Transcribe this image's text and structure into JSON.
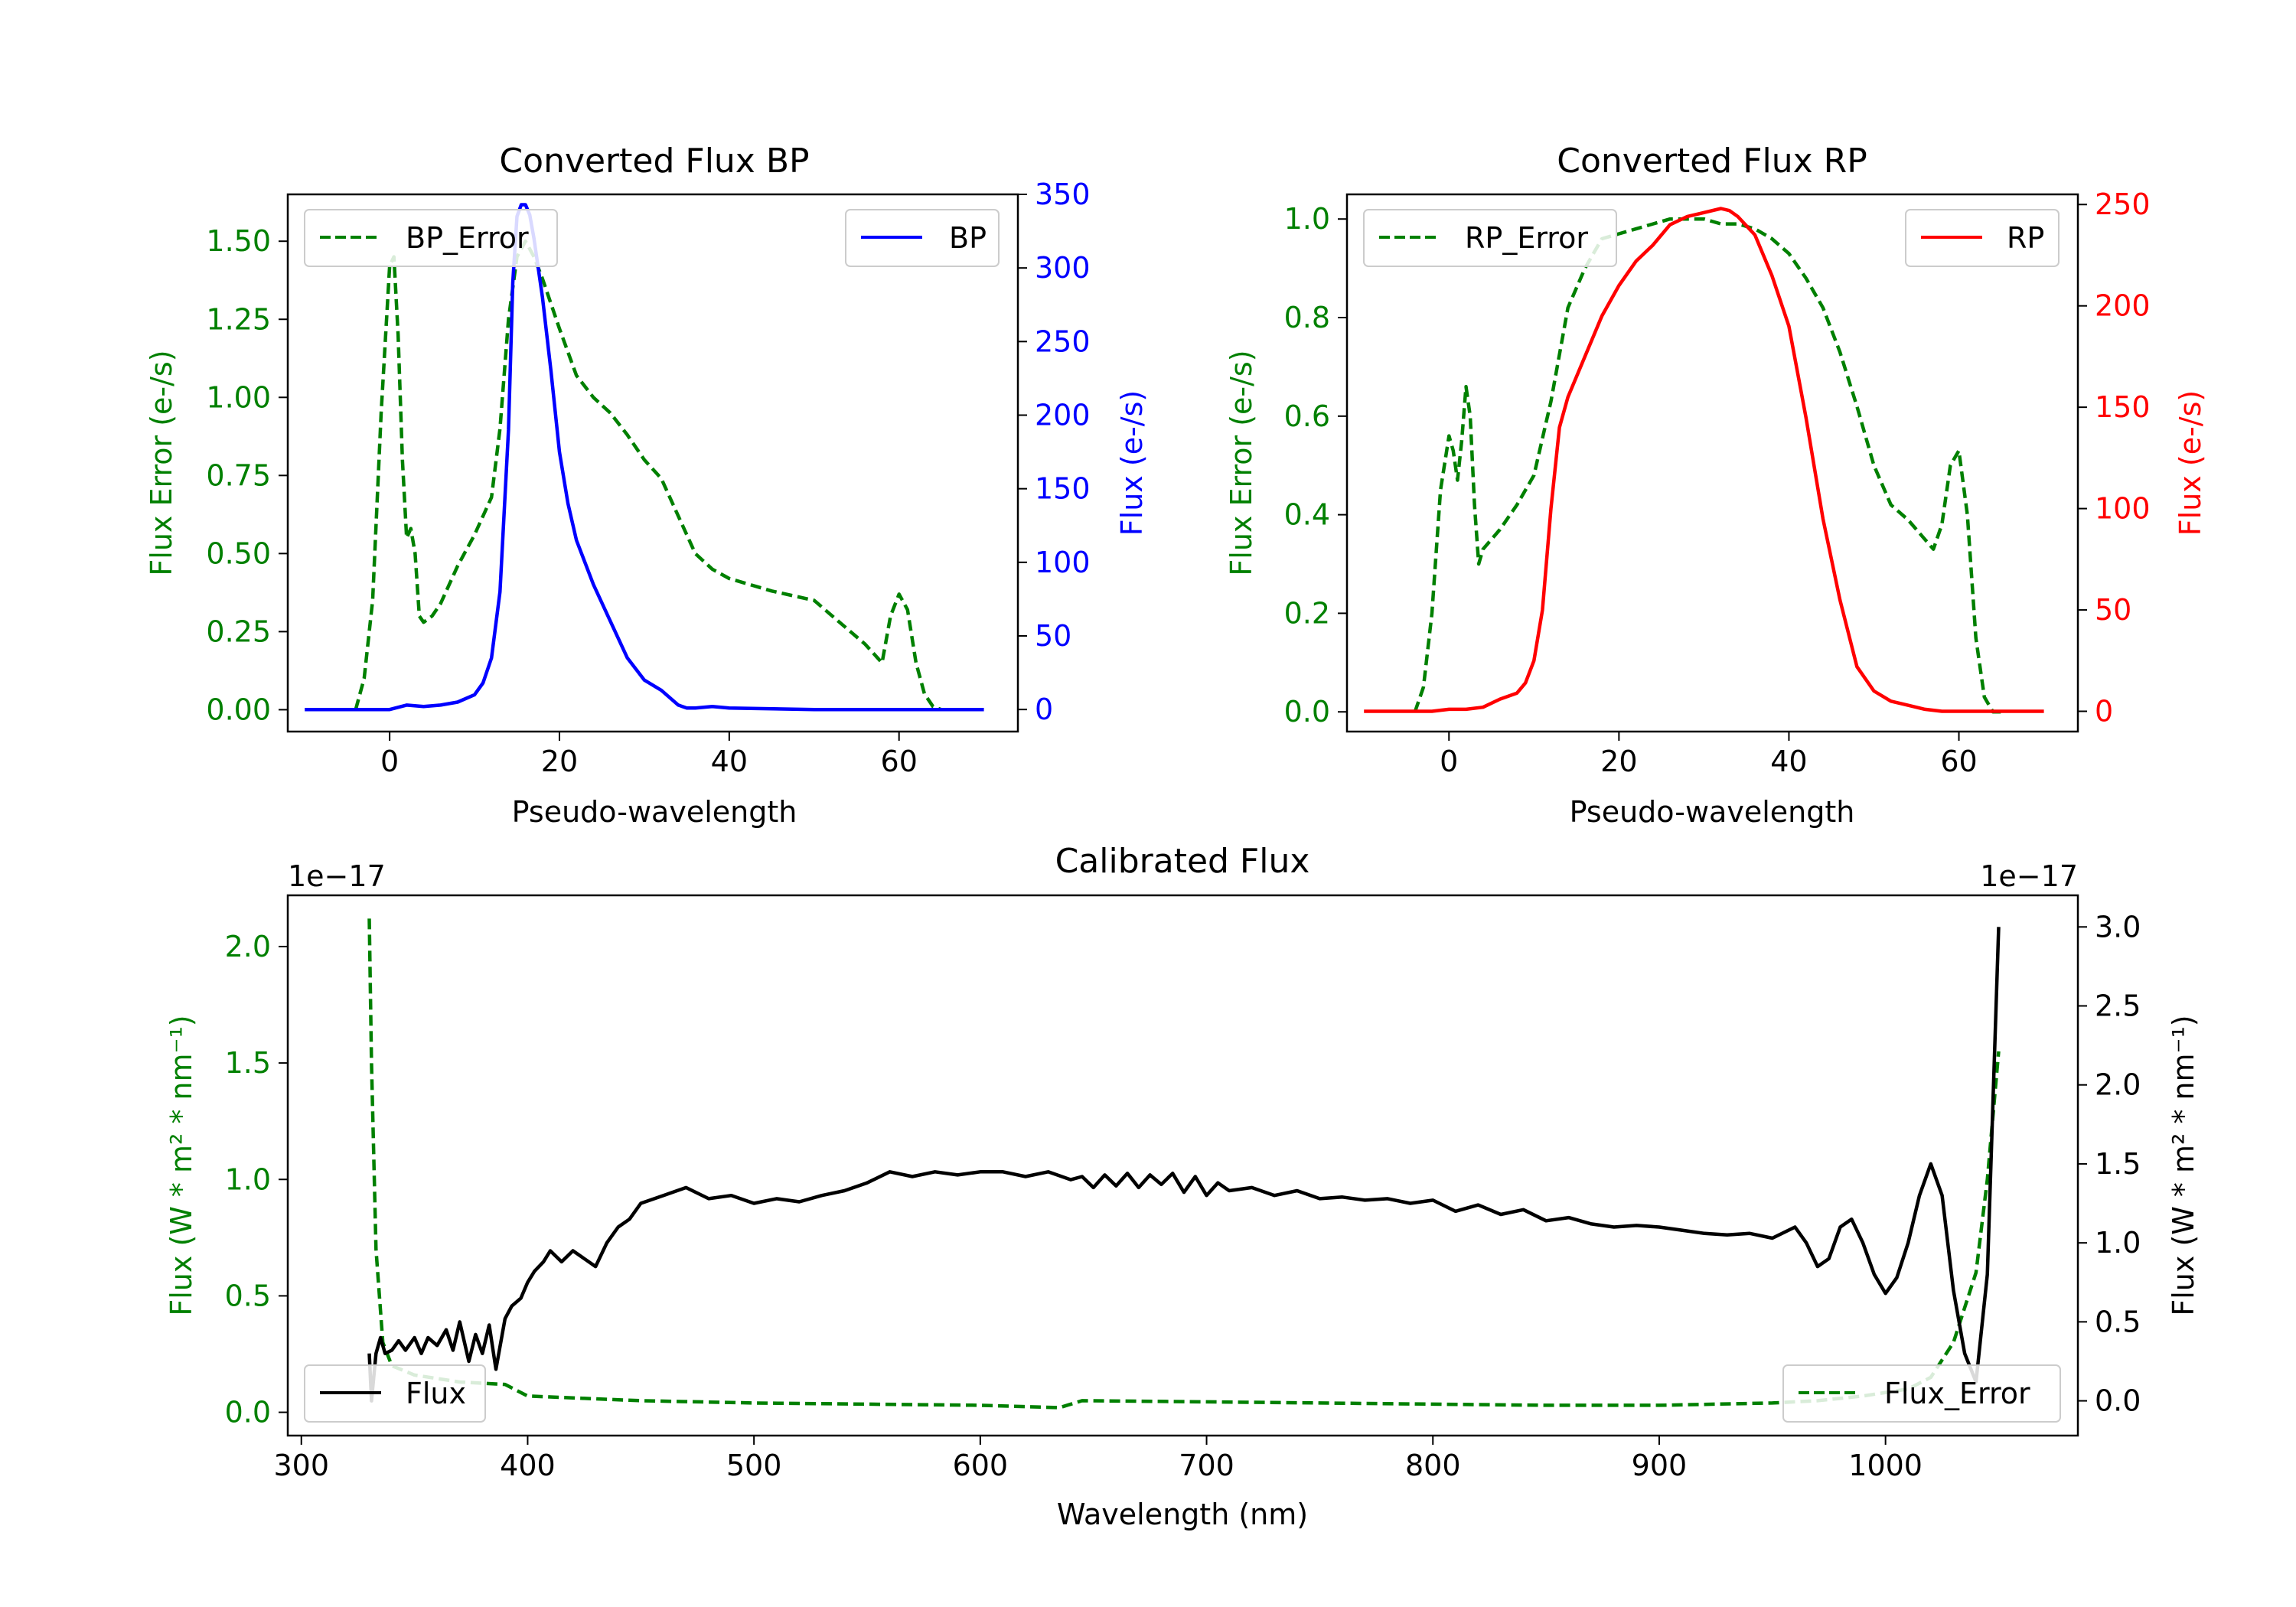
{
  "chart_data": [
    {
      "type": "line",
      "title": "Converted Flux BP",
      "xlabel": "Pseudo-wavelength",
      "xlim": [
        -12,
        74
      ],
      "xticks": [
        0,
        20,
        40,
        60
      ],
      "ylabel_left": "Flux Error (e-/s)",
      "ylim_left": [
        -0.07,
        1.65
      ],
      "yticks_left": [
        "0.00",
        "0.25",
        "0.50",
        "0.75",
        "1.00",
        "1.25",
        "1.50"
      ],
      "ylabel_right": "Flux (e-/s)",
      "ylim_right": [
        -15,
        350
      ],
      "yticks_right": [
        0,
        50,
        100,
        150,
        200,
        250,
        300,
        350
      ],
      "colors": {
        "error": "#008000",
        "flux": "#0000ff"
      },
      "series": [
        {
          "name": "BP_Error",
          "axis": "left",
          "style": "dashed",
          "x": [
            -4,
            -3,
            -2,
            -1,
            0,
            0.5,
            1,
            1.5,
            2,
            2.5,
            3,
            3.5,
            4,
            5,
            6,
            8,
            10,
            12,
            13,
            14,
            15,
            16,
            17,
            18,
            19,
            20,
            22,
            24,
            26,
            28,
            30,
            32,
            34,
            36,
            38,
            40,
            45,
            50,
            53,
            56,
            58,
            59,
            60,
            61,
            62,
            63,
            64,
            65
          ],
          "y": [
            0,
            0.1,
            0.35,
            0.95,
            1.42,
            1.45,
            1.2,
            0.8,
            0.55,
            0.58,
            0.5,
            0.3,
            0.28,
            0.3,
            0.34,
            0.46,
            0.56,
            0.68,
            0.9,
            1.25,
            1.45,
            1.5,
            1.45,
            1.38,
            1.3,
            1.22,
            1.07,
            1.0,
            0.95,
            0.88,
            0.8,
            0.74,
            0.62,
            0.5,
            0.45,
            0.42,
            0.38,
            0.35,
            0.28,
            0.21,
            0.15,
            0.3,
            0.37,
            0.32,
            0.15,
            0.05,
            0.01,
            0
          ]
        },
        {
          "name": "BP",
          "axis": "right",
          "style": "solid",
          "x": [
            -10,
            0,
            2,
            4,
            6,
            8,
            10,
            11,
            12,
            13,
            14,
            14.5,
            15,
            15.5,
            16,
            16.5,
            17,
            18,
            19,
            20,
            21,
            22,
            24,
            26,
            28,
            30,
            32,
            34,
            35,
            36,
            38,
            40,
            50,
            60,
            70
          ],
          "y": [
            0,
            0,
            3,
            2,
            3,
            5,
            10,
            18,
            35,
            80,
            190,
            290,
            335,
            343,
            343,
            336,
            320,
            280,
            230,
            175,
            140,
            115,
            85,
            60,
            35,
            20,
            13,
            3,
            1,
            1,
            2,
            1,
            0,
            0,
            0
          ]
        }
      ],
      "legend": [
        "BP_Error",
        "BP"
      ]
    },
    {
      "type": "line",
      "title": "Converted Flux RP",
      "xlabel": "Pseudo-wavelength",
      "xlim": [
        -12,
        74
      ],
      "xticks": [
        0,
        20,
        40,
        60
      ],
      "ylabel_left": "Flux Error (e-/s)",
      "ylim_left": [
        -0.04,
        1.05
      ],
      "yticks_left": [
        "0.0",
        "0.2",
        "0.4",
        "0.6",
        "0.8",
        "1.0"
      ],
      "ylabel_right": "Flux (e-/s)",
      "ylim_right": [
        -10,
        255
      ],
      "yticks_right": [
        0,
        50,
        100,
        150,
        200,
        250
      ],
      "colors": {
        "error": "#008000",
        "flux": "#ff0000"
      },
      "series": [
        {
          "name": "RP_Error",
          "axis": "left",
          "style": "dashed",
          "x": [
            -4,
            -3,
            -2,
            -1,
            0,
            0.5,
            1,
            1.5,
            2,
            2.5,
            3,
            3.5,
            4,
            5,
            6,
            8,
            10,
            12,
            14,
            16,
            18,
            20,
            22,
            24,
            26,
            28,
            30,
            32,
            34,
            36,
            38,
            40,
            42,
            44,
            46,
            48,
            50,
            52,
            54,
            56,
            57,
            58,
            59,
            60,
            61,
            62,
            63,
            64,
            65
          ],
          "y": [
            0,
            0.05,
            0.2,
            0.45,
            0.56,
            0.53,
            0.47,
            0.55,
            0.66,
            0.6,
            0.42,
            0.3,
            0.33,
            0.35,
            0.37,
            0.42,
            0.48,
            0.63,
            0.82,
            0.9,
            0.96,
            0.97,
            0.98,
            0.99,
            1.0,
            1.0,
            1.0,
            0.99,
            0.99,
            0.98,
            0.96,
            0.93,
            0.88,
            0.82,
            0.73,
            0.62,
            0.5,
            0.42,
            0.39,
            0.35,
            0.33,
            0.38,
            0.5,
            0.53,
            0.4,
            0.15,
            0.03,
            0,
            0
          ]
        },
        {
          "name": "RP",
          "axis": "right",
          "style": "solid",
          "x": [
            -10,
            -2,
            0,
            2,
            4,
            6,
            8,
            9,
            10,
            11,
            12,
            13,
            14,
            16,
            18,
            20,
            22,
            24,
            26,
            28,
            30,
            32,
            33,
            34,
            36,
            38,
            40,
            42,
            44,
            46,
            48,
            50,
            52,
            54,
            56,
            58,
            60,
            65,
            70
          ],
          "y": [
            0,
            0,
            1,
            1,
            2,
            6,
            9,
            14,
            25,
            50,
            100,
            140,
            155,
            175,
            195,
            210,
            222,
            230,
            240,
            244,
            246,
            248,
            247,
            244,
            235,
            215,
            190,
            145,
            95,
            55,
            22,
            10,
            5,
            3,
            1,
            0,
            0,
            0,
            0
          ]
        }
      ],
      "legend": [
        "RP_Error",
        "RP"
      ]
    },
    {
      "type": "line",
      "title": "Calibrated Flux",
      "xlabel": "Wavelength (nm)",
      "xlim": [
        294,
        1085
      ],
      "xticks": [
        300,
        400,
        500,
        600,
        700,
        800,
        900,
        1000
      ],
      "ylabel_left": "Flux (W * m² * nm⁻¹)",
      "ylim_left": [
        -0.1,
        2.22
      ],
      "yticks_left": [
        "0.0",
        "0.5",
        "1.0",
        "1.5",
        "2.0"
      ],
      "offset_left": "1e−17",
      "ylabel_right": "Flux (W * m² * nm⁻¹)",
      "ylim_right": [
        -0.22,
        3.2
      ],
      "yticks_right": [
        "0.0",
        "0.5",
        "1.0",
        "1.5",
        "2.0",
        "2.5",
        "3.0"
      ],
      "offset_right": "1e−17",
      "colors": {
        "error": "#008000",
        "flux": "#000000"
      },
      "series": [
        {
          "name": "Flux_Error",
          "axis": "left",
          "style": "dashed",
          "x": [
            330,
            331,
            333,
            336,
            340,
            350,
            370,
            390,
            400,
            450,
            500,
            550,
            600,
            635,
            645,
            700,
            750,
            800,
            850,
            900,
            950,
            970,
            990,
            1010,
            1020,
            1030,
            1040,
            1045,
            1050
          ],
          "y": [
            2.12,
            1.5,
            0.7,
            0.3,
            0.2,
            0.16,
            0.13,
            0.12,
            0.07,
            0.05,
            0.04,
            0.035,
            0.03,
            0.02,
            0.05,
            0.045,
            0.04,
            0.035,
            0.03,
            0.03,
            0.04,
            0.05,
            0.07,
            0.1,
            0.15,
            0.3,
            0.6,
            1.0,
            1.55
          ]
        },
        {
          "name": "Flux",
          "axis": "right",
          "style": "solid",
          "x": [
            330,
            331,
            333,
            335,
            337,
            340,
            343,
            346,
            350,
            353,
            356,
            360,
            364,
            367,
            370,
            374,
            377,
            380,
            383,
            386,
            390,
            393,
            397,
            400,
            403,
            407,
            410,
            415,
            420,
            425,
            430,
            435,
            440,
            445,
            450,
            460,
            470,
            480,
            490,
            500,
            510,
            520,
            530,
            540,
            550,
            560,
            570,
            580,
            590,
            600,
            610,
            620,
            630,
            640,
            645,
            650,
            655,
            660,
            665,
            670,
            675,
            680,
            685,
            690,
            695,
            700,
            705,
            710,
            720,
            730,
            740,
            750,
            760,
            770,
            780,
            790,
            800,
            810,
            820,
            830,
            840,
            850,
            860,
            870,
            880,
            890,
            900,
            910,
            920,
            930,
            940,
            950,
            960,
            965,
            970,
            975,
            980,
            985,
            990,
            995,
            1000,
            1005,
            1010,
            1015,
            1020,
            1025,
            1030,
            1035,
            1040,
            1045,
            1050
          ],
          "y": [
            0.3,
            0.0,
            0.3,
            0.4,
            0.3,
            0.32,
            0.38,
            0.32,
            0.4,
            0.3,
            0.4,
            0.35,
            0.45,
            0.32,
            0.5,
            0.25,
            0.42,
            0.3,
            0.48,
            0.2,
            0.52,
            0.6,
            0.65,
            0.75,
            0.82,
            0.88,
            0.95,
            0.88,
            0.95,
            0.9,
            0.85,
            1.0,
            1.1,
            1.15,
            1.25,
            1.3,
            1.35,
            1.28,
            1.3,
            1.25,
            1.28,
            1.26,
            1.3,
            1.33,
            1.38,
            1.45,
            1.42,
            1.45,
            1.43,
            1.45,
            1.45,
            1.42,
            1.45,
            1.4,
            1.42,
            1.35,
            1.43,
            1.36,
            1.44,
            1.35,
            1.43,
            1.37,
            1.44,
            1.32,
            1.42,
            1.3,
            1.38,
            1.33,
            1.35,
            1.3,
            1.33,
            1.28,
            1.29,
            1.27,
            1.28,
            1.25,
            1.27,
            1.2,
            1.24,
            1.18,
            1.21,
            1.14,
            1.16,
            1.12,
            1.1,
            1.11,
            1.1,
            1.08,
            1.06,
            1.05,
            1.06,
            1.03,
            1.1,
            1.0,
            0.85,
            0.9,
            1.1,
            1.15,
            1.0,
            0.8,
            0.68,
            0.78,
            1.0,
            1.3,
            1.5,
            1.3,
            0.7,
            0.3,
            0.12,
            0.8,
            3.0
          ]
        }
      ],
      "legend": [
        "Flux",
        "Flux_Error"
      ]
    }
  ]
}
